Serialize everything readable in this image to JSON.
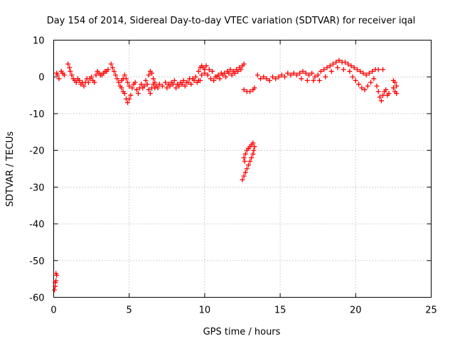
{
  "chart_data": {
    "type": "scatter",
    "title": "Day 154 of 2014, Sidereal Day-to-day VTEC variation (SDTVAR) for receiver iqal",
    "xlabel": "GPS time / hours",
    "ylabel": "SDTVAR / TECUs",
    "xlim": [
      0,
      25
    ],
    "ylim": [
      -60,
      10
    ],
    "xticks": [
      0,
      5,
      10,
      15,
      20,
      25
    ],
    "yticks": [
      10,
      0,
      -10,
      -20,
      -30,
      -40,
      -50,
      -60
    ],
    "grid": true,
    "marker": "plus",
    "color": "#ff0000",
    "series": [
      {
        "name": "iqal",
        "points": [
          [
            0.05,
            -58
          ],
          [
            0.1,
            -57
          ],
          [
            0.1,
            -56
          ],
          [
            0.15,
            -55.5
          ],
          [
            0.2,
            -54
          ],
          [
            0.15,
            -53.5
          ],
          [
            0.2,
            1
          ],
          [
            0.25,
            0.5
          ],
          [
            0.35,
            -0.5
          ],
          [
            0.5,
            1.5
          ],
          [
            0.6,
            1
          ],
          [
            0.7,
            0.5
          ],
          [
            0.95,
            3.5
          ],
          [
            1.05,
            2.5
          ],
          [
            1.1,
            1.5
          ],
          [
            1.2,
            0.5
          ],
          [
            1.3,
            -0.5
          ],
          [
            1.4,
            -1
          ],
          [
            1.5,
            -1.5
          ],
          [
            1.6,
            -0.5
          ],
          [
            1.7,
            -1
          ],
          [
            1.8,
            -2
          ],
          [
            1.9,
            -1.5
          ],
          [
            2.0,
            -2.5
          ],
          [
            2.1,
            -1.5
          ],
          [
            2.2,
            -0.5
          ],
          [
            2.3,
            -1.5
          ],
          [
            2.4,
            -0.5
          ],
          [
            2.5,
            0
          ],
          [
            2.6,
            -1
          ],
          [
            2.7,
            -1.5
          ],
          [
            2.8,
            0.5
          ],
          [
            2.9,
            1.5
          ],
          [
            3.0,
            1.0
          ],
          [
            3.1,
            0.5
          ],
          [
            3.2,
            0.5
          ],
          [
            3.3,
            1.0
          ],
          [
            3.4,
            1.5
          ],
          [
            3.5,
            1.5
          ],
          [
            3.6,
            2.0
          ],
          [
            3.8,
            3.5
          ],
          [
            3.9,
            2.5
          ],
          [
            4.0,
            1.5
          ],
          [
            4.1,
            0.5
          ],
          [
            4.2,
            -0.5
          ],
          [
            4.3,
            -1.5
          ],
          [
            4.4,
            -2.5
          ],
          [
            4.5,
            -3.0
          ],
          [
            4.6,
            -4.0
          ],
          [
            4.7,
            -4.5
          ],
          [
            4.8,
            -6.0
          ],
          [
            4.9,
            -7.0
          ],
          [
            5.0,
            -6.0
          ],
          [
            5.1,
            -5.0
          ],
          [
            5.2,
            -3.0
          ],
          [
            5.3,
            -2.0
          ],
          [
            5.4,
            -1.5
          ],
          [
            5.5,
            -3.5
          ],
          [
            5.6,
            -4.5
          ],
          [
            5.7,
            -3.0
          ],
          [
            5.8,
            -2.0
          ],
          [
            5.9,
            -3.0
          ],
          [
            6.0,
            -2.5
          ],
          [
            6.1,
            -1.0
          ],
          [
            6.2,
            -2.0
          ],
          [
            6.3,
            -3.5
          ],
          [
            6.4,
            -4.5
          ],
          [
            6.5,
            -3.0
          ],
          [
            6.6,
            -2.0
          ],
          [
            6.7,
            -3.0
          ],
          [
            4.5,
            -1
          ],
          [
            4.6,
            -0.5
          ],
          [
            4.7,
            0.5
          ],
          [
            4.8,
            -0.5
          ],
          [
            4.9,
            -1.5
          ],
          [
            5.0,
            -2.5
          ],
          [
            6.3,
            0.5
          ],
          [
            6.4,
            1.5
          ],
          [
            6.5,
            1.0
          ],
          [
            6.6,
            -0.5
          ],
          [
            6.7,
            -1.5
          ],
          [
            6.8,
            -2.5
          ],
          [
            6.9,
            -3.0
          ],
          [
            7.0,
            -2.0
          ],
          [
            7.2,
            -2.5
          ],
          [
            7.4,
            -1.5
          ],
          [
            7.6,
            -2.0
          ],
          [
            7.8,
            -1.5
          ],
          [
            8.0,
            -1.0
          ],
          [
            8.2,
            -2.0
          ],
          [
            8.4,
            -1.5
          ],
          [
            8.6,
            -1.0
          ],
          [
            8.8,
            -1.5
          ],
          [
            9.0,
            -0.5
          ],
          [
            9.2,
            -0.5
          ],
          [
            9.4,
            0.0
          ],
          [
            9.6,
            -1.0
          ],
          [
            9.8,
            0.5
          ],
          [
            10.0,
            1.0
          ],
          [
            10.2,
            0.5
          ],
          [
            7.5,
            -3
          ],
          [
            7.7,
            -2.5
          ],
          [
            7.9,
            -2
          ],
          [
            8.1,
            -3
          ],
          [
            8.3,
            -2.5
          ],
          [
            8.5,
            -2
          ],
          [
            8.7,
            -2.5
          ],
          [
            8.9,
            -1.5
          ],
          [
            9.1,
            -2
          ],
          [
            9.3,
            -1
          ],
          [
            9.5,
            -1.5
          ],
          [
            9.7,
            -1
          ],
          [
            9.6,
            1.5
          ],
          [
            9.7,
            2.5
          ],
          [
            9.8,
            3.0
          ],
          [
            9.9,
            2.5
          ],
          [
            10.0,
            2.0
          ],
          [
            10.1,
            3.0
          ],
          [
            10.3,
            2.0
          ],
          [
            10.5,
            1.5
          ],
          [
            10.7,
            0.0
          ],
          [
            10.9,
            0.5
          ],
          [
            11.1,
            1.0
          ],
          [
            11.3,
            1.0
          ],
          [
            11.5,
            1.5
          ],
          [
            11.7,
            2.0
          ],
          [
            11.9,
            1.5
          ],
          [
            12.1,
            2.0
          ],
          [
            12.3,
            2.5
          ],
          [
            12.5,
            3.0
          ],
          [
            10.4,
            -0.5
          ],
          [
            10.6,
            -1
          ],
          [
            10.8,
            0
          ],
          [
            11.0,
            -0.5
          ],
          [
            11.2,
            0.5
          ],
          [
            11.4,
            0
          ],
          [
            11.6,
            1
          ],
          [
            11.8,
            0.5
          ],
          [
            12.0,
            1
          ],
          [
            12.2,
            1.5
          ],
          [
            12.4,
            2
          ],
          [
            12.6,
            3.5
          ],
          [
            12.5,
            -28
          ],
          [
            12.6,
            -27
          ],
          [
            12.7,
            -26
          ],
          [
            12.8,
            -25
          ],
          [
            12.9,
            -24
          ],
          [
            13.0,
            -23
          ],
          [
            13.1,
            -22
          ],
          [
            13.2,
            -21
          ],
          [
            13.25,
            -20
          ],
          [
            13.3,
            -19
          ],
          [
            12.6,
            -22
          ],
          [
            12.7,
            -21
          ],
          [
            12.8,
            -20
          ],
          [
            12.9,
            -19.5
          ],
          [
            13.0,
            -19
          ],
          [
            13.1,
            -18.5
          ],
          [
            13.2,
            -18
          ],
          [
            12.65,
            -23
          ],
          [
            12.6,
            -3.5
          ],
          [
            12.8,
            -4.0
          ],
          [
            13.0,
            -4.0
          ],
          [
            13.2,
            -3.5
          ],
          [
            13.3,
            -3.0
          ],
          [
            13.5,
            0.5
          ],
          [
            13.7,
            -0.5
          ],
          [
            13.9,
            0.0
          ],
          [
            14.1,
            -0.5
          ],
          [
            14.3,
            -1.0
          ],
          [
            14.5,
            0.0
          ],
          [
            14.7,
            -0.5
          ],
          [
            14.9,
            0.0
          ],
          [
            15.1,
            0.5
          ],
          [
            15.3,
            0.0
          ],
          [
            15.5,
            1.0
          ],
          [
            15.7,
            0.5
          ],
          [
            15.9,
            1.0
          ],
          [
            16.1,
            0.5
          ],
          [
            16.3,
            1.0
          ],
          [
            16.5,
            1.5
          ],
          [
            16.7,
            1.0
          ],
          [
            16.9,
            0.5
          ],
          [
            17.1,
            1.0
          ],
          [
            17.3,
            0.0
          ],
          [
            17.5,
            0.5
          ],
          [
            17.7,
            1.5
          ],
          [
            17.9,
            2.0
          ],
          [
            18.1,
            2.5
          ],
          [
            18.3,
            3.0
          ],
          [
            18.5,
            3.5
          ],
          [
            18.7,
            4.0
          ],
          [
            18.9,
            4.5
          ],
          [
            19.1,
            4.0
          ],
          [
            19.3,
            4.0
          ],
          [
            19.5,
            3.5
          ],
          [
            19.7,
            3.0
          ],
          [
            19.9,
            2.5
          ],
          [
            20.1,
            2.0
          ],
          [
            20.3,
            1.5
          ],
          [
            20.5,
            1.0
          ],
          [
            20.7,
            0.5
          ],
          [
            20.9,
            1.0
          ],
          [
            21.1,
            1.5
          ],
          [
            21.3,
            2.0
          ],
          [
            21.5,
            2.0
          ],
          [
            21.8,
            2.0
          ],
          [
            16.4,
            -0.5
          ],
          [
            16.8,
            -1.0
          ],
          [
            17.2,
            -1.0
          ],
          [
            17.6,
            -1.0
          ],
          [
            18.0,
            0.0
          ],
          [
            18.4,
            1.5
          ],
          [
            18.8,
            2.5
          ],
          [
            19.2,
            2.0
          ],
          [
            19.6,
            1.5
          ],
          [
            19.8,
            0.0
          ],
          [
            20.0,
            -1.0
          ],
          [
            20.2,
            -2.0
          ],
          [
            20.4,
            -3.0
          ],
          [
            20.6,
            -3.5
          ],
          [
            20.8,
            -2.5
          ],
          [
            21.0,
            -1.5
          ],
          [
            21.2,
            -0.5
          ],
          [
            21.4,
            -2.5
          ],
          [
            21.5,
            -4.0
          ],
          [
            21.6,
            -5.5
          ],
          [
            21.7,
            -6.5
          ],
          [
            21.8,
            -5.0
          ],
          [
            21.9,
            -4.0
          ],
          [
            22.0,
            -3.5
          ],
          [
            22.1,
            -5.0
          ],
          [
            22.2,
            -4.5
          ],
          [
            22.5,
            -3.0
          ],
          [
            22.6,
            -1.5
          ],
          [
            22.7,
            -2.5
          ],
          [
            22.6,
            -4.0
          ],
          [
            22.7,
            -4.5
          ],
          [
            22.5,
            -1.0
          ]
        ]
      }
    ]
  }
}
